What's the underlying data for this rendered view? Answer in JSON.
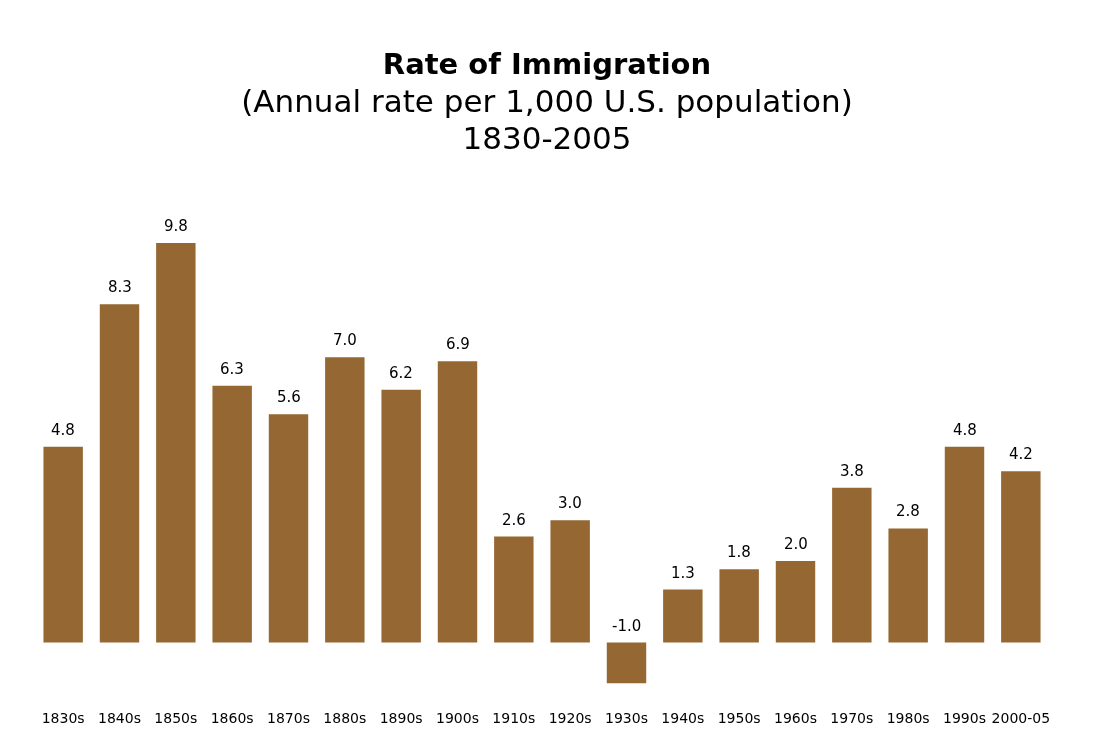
{
  "chart_data": {
    "type": "bar",
    "title": "Rate of Immigration",
    "subtitle": "(Annual rate per 1,000 U.S. population)\n1830-2005",
    "categories": [
      "1830s",
      "1840s",
      "1850s",
      "1860s",
      "1870s",
      "1880s",
      "1890s",
      "1900s",
      "1910s",
      "1920s",
      "1930s",
      "1940s",
      "1950s",
      "1960s",
      "1970s",
      "1980s",
      "1990s",
      "2000-05"
    ],
    "values": [
      4.8,
      8.3,
      9.8,
      6.3,
      5.6,
      7.0,
      6.2,
      6.9,
      2.6,
      3.0,
      -1.0,
      1.3,
      1.8,
      2.0,
      3.8,
      2.8,
      4.8,
      4.2
    ],
    "value_labels": [
      "4.8",
      "8.3",
      "9.8",
      "6.3",
      "5.6",
      "7.0",
      "6.2",
      "6.9",
      "2.6",
      "3.0",
      "-1.0",
      "1.3",
      "1.8",
      "2.0",
      "3.8",
      "2.8",
      "4.8",
      "4.2"
    ],
    "color": "#956732"
  }
}
